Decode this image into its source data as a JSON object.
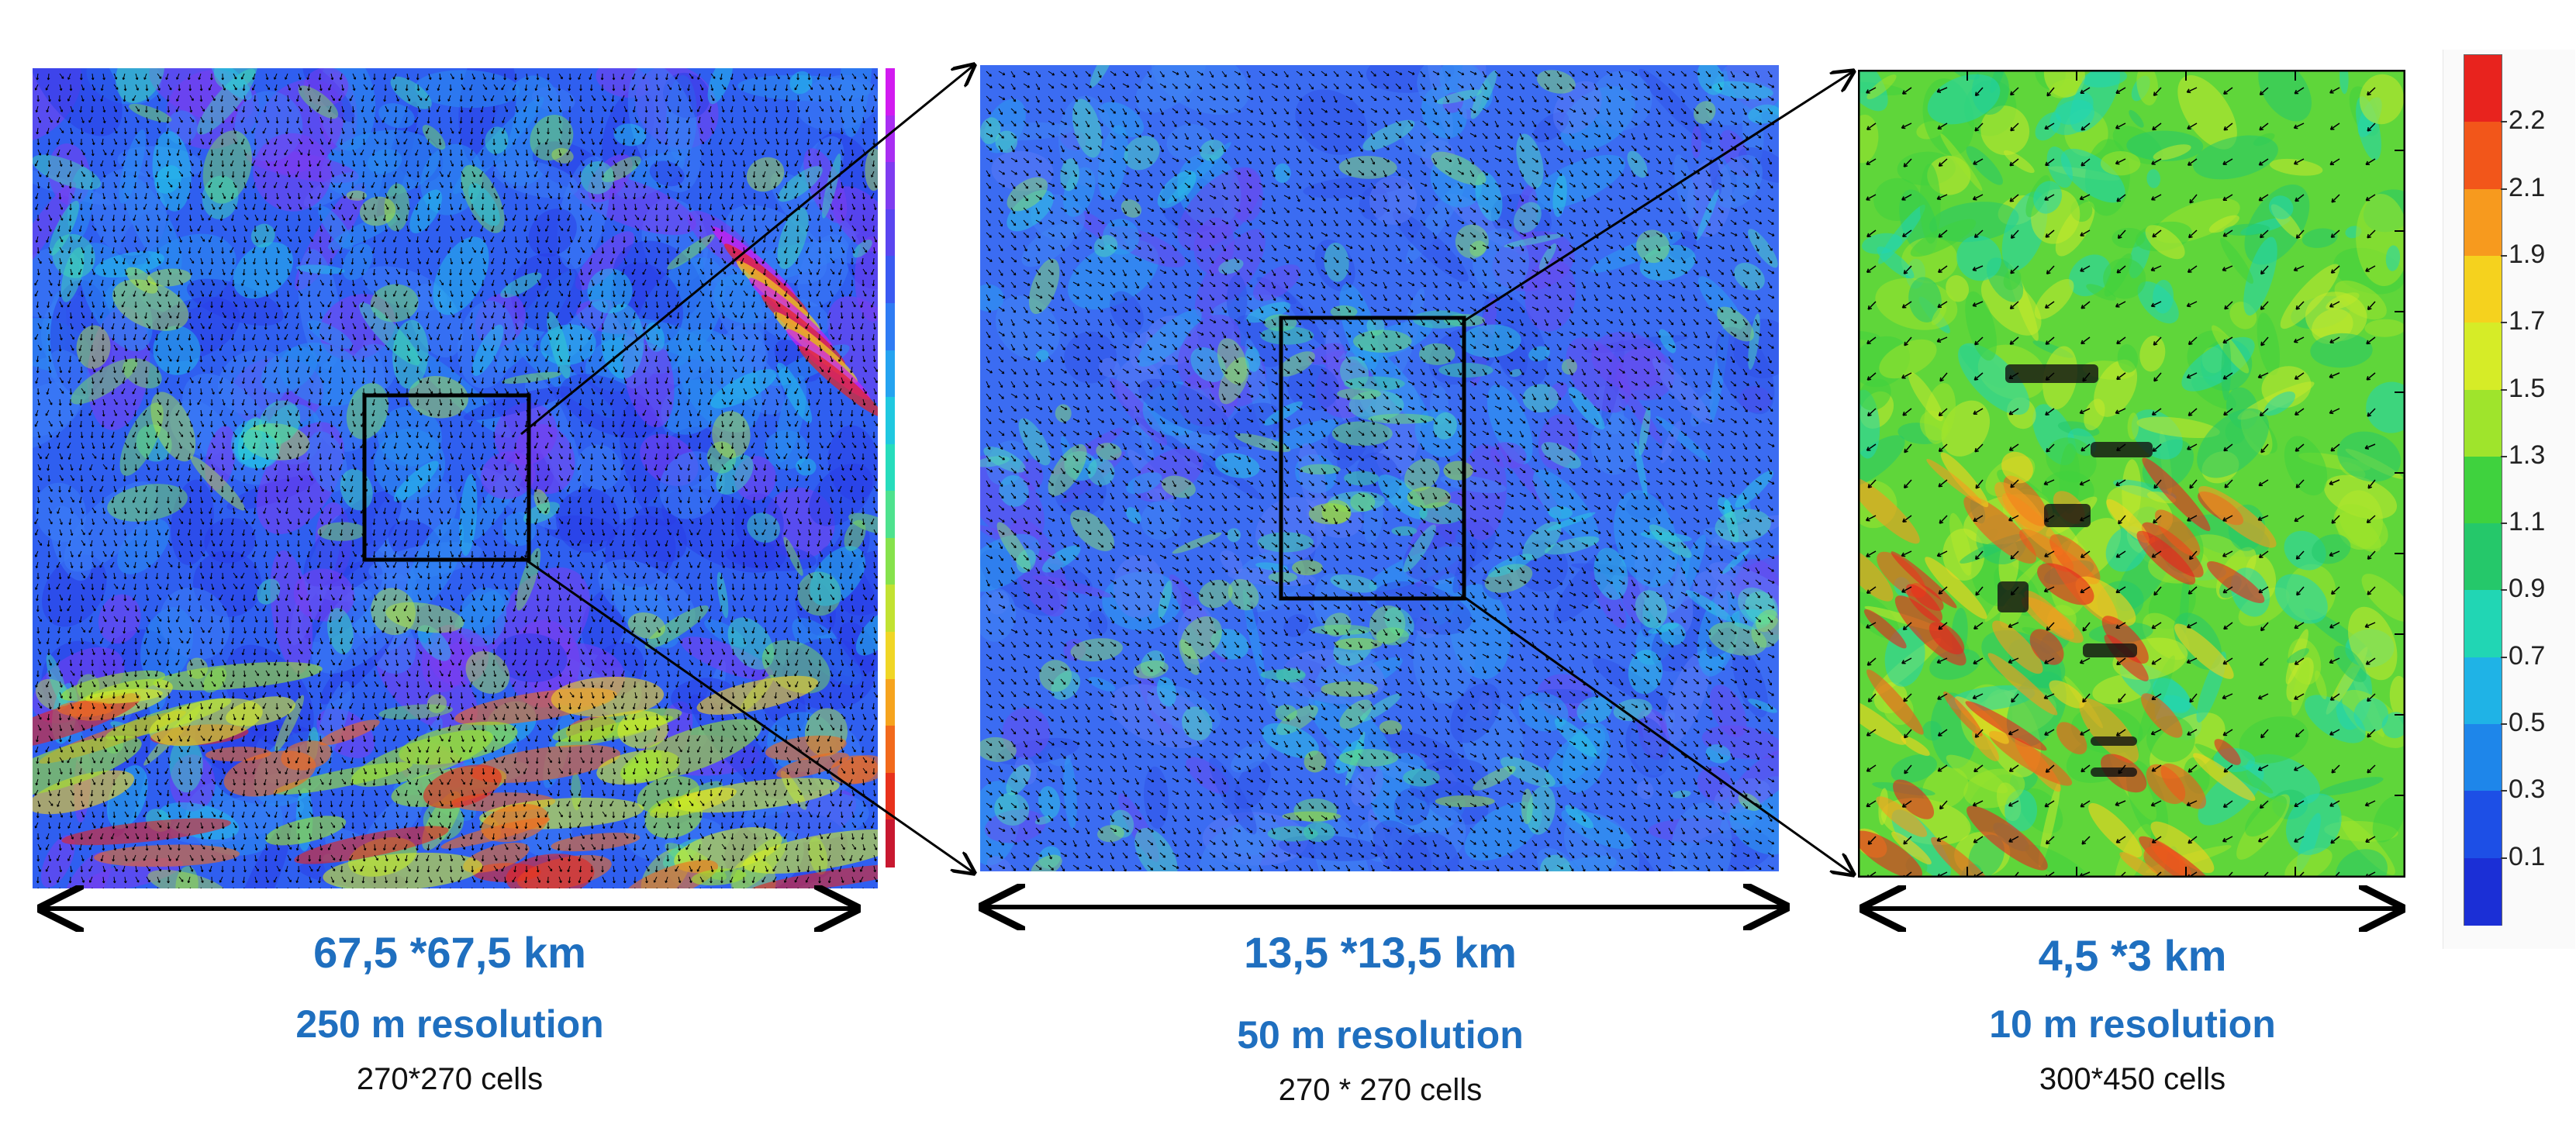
{
  "panels": [
    {
      "size": "67,5 *67,5 km",
      "resolution": "250 m resolution",
      "cells": "270*270 cells"
    },
    {
      "size": "13,5 *13,5 km",
      "resolution": "50 m resolution",
      "cells": "270 * 270 cells"
    },
    {
      "size": "4,5 *3 km",
      "resolution": "10 m resolution",
      "cells": "300*450 cells"
    }
  ],
  "colorbar": {
    "labels": [
      "2.2",
      "2.1",
      "1.9",
      "1.7",
      "1.5",
      "1.3",
      "1.1",
      "0.9",
      "0.7",
      "0.5",
      "0.3",
      "0.1"
    ],
    "colors": [
      "#e8231e",
      "#f2561a",
      "#f79a1e",
      "#f5d21e",
      "#d6ec27",
      "#9fe42c",
      "#3fd23e",
      "#25c86a",
      "#21d6b4",
      "#1fb3e6",
      "#1e86ea",
      "#1d4fe6",
      "#1b2fd6"
    ]
  },
  "small_colorbar": {
    "colors": [
      "#d21bf0",
      "#a92ef2",
      "#7f3cf0",
      "#5a46f0",
      "#3a5af2",
      "#2f7cf4",
      "#25a3f0",
      "#20c8e0",
      "#27dcbc",
      "#4ee28e",
      "#86e24c",
      "#c2e232",
      "#f0d626",
      "#f6a41e",
      "#f26a1c",
      "#e8321c",
      "#c81830"
    ]
  },
  "accent_color": "#1f6fbf"
}
